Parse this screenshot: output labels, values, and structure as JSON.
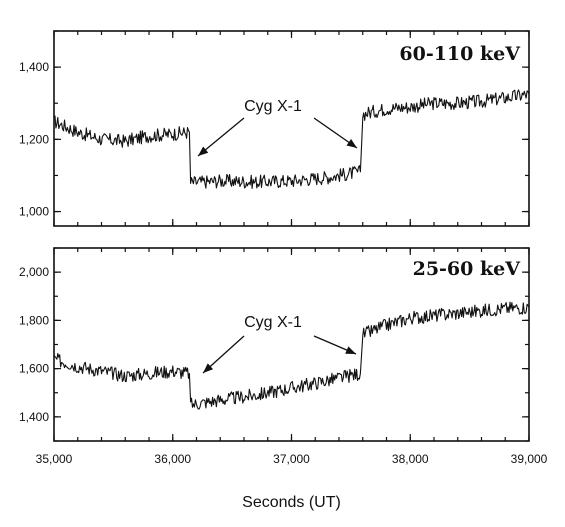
{
  "chart_data": [
    {
      "type": "line",
      "title": "60-110 keV",
      "xlabel": "",
      "ylabel": "",
      "xlim": [
        35000,
        39000
      ],
      "ylim": [
        960,
        1500
      ],
      "yticks": [
        1000,
        1200,
        1400
      ],
      "ytick_labels": [
        "1,000",
        "1,200",
        "1,400"
      ],
      "xticks": [
        35000,
        36000,
        37000,
        38000,
        39000
      ],
      "annotation": "Cyg X-1",
      "annotation_targets": [
        36200,
        37600
      ],
      "series": [
        {
          "x": [
            35000,
            35200,
            35400,
            35600,
            35800,
            36000,
            36140,
            36150,
            36400,
            36700,
            37000,
            37300,
            37580,
            37600,
            37800,
            38000,
            38200,
            38400,
            38600,
            38800,
            39000
          ],
          "values": [
            1250,
            1220,
            1200,
            1195,
            1210,
            1215,
            1220,
            1080,
            1085,
            1082,
            1085,
            1095,
            1110,
            1270,
            1285,
            1290,
            1300,
            1300,
            1305,
            1315,
            1325
          ]
        }
      ]
    },
    {
      "type": "line",
      "title": "25-60 keV",
      "xlabel": "Seconds (UT)",
      "ylabel": "",
      "xlim": [
        35000,
        39000
      ],
      "ylim": [
        1300,
        2100
      ],
      "yticks": [
        1400,
        1600,
        1800,
        2000
      ],
      "ytick_labels": [
        "1,400",
        "1,600",
        "1,800",
        "2,000"
      ],
      "xticks": [
        35000,
        36000,
        37000,
        38000,
        39000
      ],
      "xtick_labels": [
        "35,000",
        "36,000",
        "37,000",
        "38,000",
        "39,000"
      ],
      "annotation": "Cyg X-1",
      "annotation_targets": [
        36200,
        37600
      ],
      "series": [
        {
          "x": [
            35000,
            35200,
            35400,
            35600,
            35800,
            36000,
            36140,
            36150,
            36400,
            36700,
            37000,
            37300,
            37580,
            37600,
            37800,
            38000,
            38200,
            38400,
            38600,
            38800,
            39000
          ],
          "values": [
            1640,
            1610,
            1590,
            1570,
            1580,
            1590,
            1580,
            1450,
            1470,
            1490,
            1520,
            1550,
            1580,
            1740,
            1780,
            1810,
            1820,
            1830,
            1840,
            1850,
            1855
          ]
        }
      ]
    }
  ]
}
